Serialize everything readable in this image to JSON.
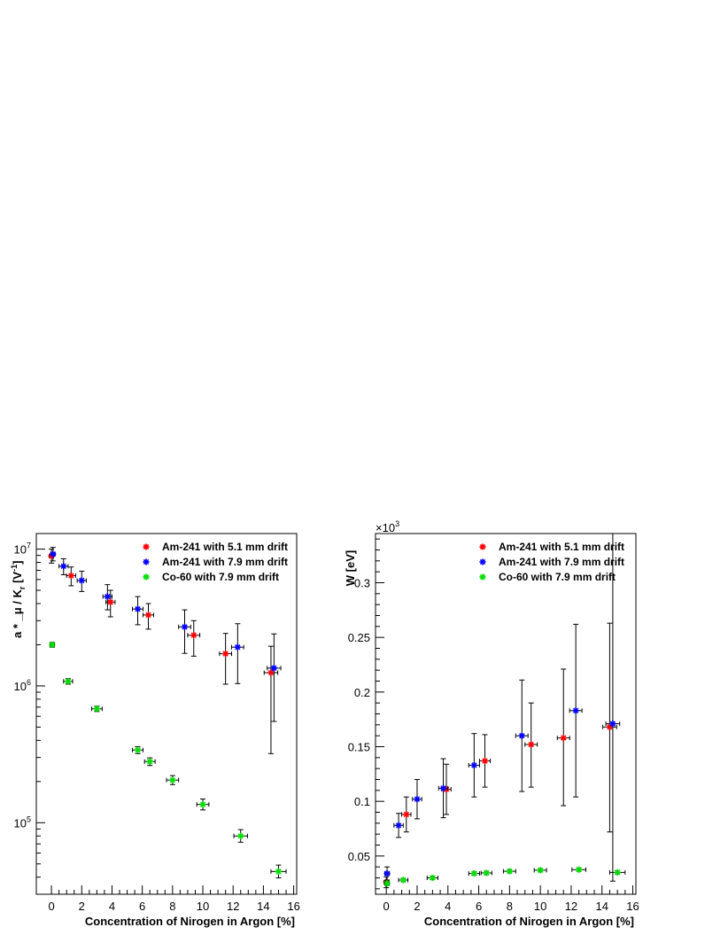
{
  "chart_data": [
    {
      "type": "scatter",
      "title": "",
      "xlabel": "Concentration of Nirogen in Argon [%]",
      "ylabel": "a * _μ / K_r [V^-1]",
      "ylabel_parts": [
        "a * ",
        "_μ / K",
        "r",
        " [V",
        "-1",
        "]"
      ],
      "xlim": [
        -1,
        16.2
      ],
      "ylim": [
        30000,
        13000000
      ],
      "yscale": "log",
      "x_ticks": [
        "0",
        "2",
        "4",
        "6",
        "8",
        "10",
        "12",
        "14",
        "16"
      ],
      "y_ticks": [
        {
          "base": "10",
          "exp": "5",
          "value": 100000
        },
        {
          "base": "10",
          "exp": "6",
          "value": 1000000
        },
        {
          "base": "10",
          "exp": "7",
          "value": 10000000
        }
      ],
      "legend_position": "top-right",
      "grid": false,
      "series": [
        {
          "name": "Am-241 with 5.1 mm drift",
          "color": "#ff0000",
          "points": [
            {
              "x": 0.0,
              "y": 8900000,
              "xerr": 0.15,
              "ylo": 7900000,
              "yhi": 10000000
            },
            {
              "x": 1.3,
              "y": 6400000,
              "xerr": 0.3,
              "ylo": 5400000,
              "yhi": 7400000
            },
            {
              "x": 3.9,
              "y": 4100000,
              "xerr": 0.3,
              "ylo": 3200000,
              "yhi": 5000000
            },
            {
              "x": 6.4,
              "y": 3300000,
              "xerr": 0.35,
              "ylo": 2600000,
              "yhi": 4000000
            },
            {
              "x": 9.4,
              "y": 2350000,
              "xerr": 0.4,
              "ylo": 1650000,
              "yhi": 3000000
            },
            {
              "x": 11.5,
              "y": 1720000,
              "xerr": 0.4,
              "ylo": 1030000,
              "yhi": 2420000
            },
            {
              "x": 14.5,
              "y": 1250000,
              "xerr": 0.45,
              "ylo": 320000,
              "yhi": 1950000
            }
          ]
        },
        {
          "name": "Am-241 with 7.9 mm drift",
          "color": "#0000ff",
          "points": [
            {
              "x": 0.1,
              "y": 9200000,
              "xerr": 0.15,
              "ylo": 8200000,
              "yhi": 10300000
            },
            {
              "x": 0.8,
              "y": 7500000,
              "xerr": 0.3,
              "ylo": 6500000,
              "yhi": 8500000
            },
            {
              "x": 2.0,
              "y": 5900000,
              "xerr": 0.3,
              "ylo": 4900000,
              "yhi": 6900000
            },
            {
              "x": 3.7,
              "y": 4500000,
              "xerr": 0.3,
              "ylo": 3600000,
              "yhi": 5500000
            },
            {
              "x": 5.7,
              "y": 3650000,
              "xerr": 0.35,
              "ylo": 2800000,
              "yhi": 4500000
            },
            {
              "x": 8.8,
              "y": 2700000,
              "xerr": 0.4,
              "ylo": 1730000,
              "yhi": 3600000
            },
            {
              "x": 12.3,
              "y": 1920000,
              "xerr": 0.4,
              "ylo": 1040000,
              "yhi": 2850000
            },
            {
              "x": 14.7,
              "y": 1350000,
              "xerr": 0.45,
              "ylo": 550000,
              "yhi": 2400000
            }
          ]
        },
        {
          "name": "Co-60 with 7.9 mm drift",
          "color": "#00dd00",
          "points": [
            {
              "x": 0.05,
              "y": 2000000,
              "xerr": 0.15,
              "ylo": 1920000,
              "yhi": 2080000
            },
            {
              "x": 1.1,
              "y": 1080000,
              "xerr": 0.3,
              "ylo": 1030000,
              "yhi": 1130000
            },
            {
              "x": 3.0,
              "y": 680000,
              "xerr": 0.35,
              "ylo": 650000,
              "yhi": 710000
            },
            {
              "x": 5.7,
              "y": 340000,
              "xerr": 0.35,
              "ylo": 320000,
              "yhi": 360000
            },
            {
              "x": 6.5,
              "y": 280000,
              "xerr": 0.35,
              "ylo": 262000,
              "yhi": 298000
            },
            {
              "x": 8.0,
              "y": 205000,
              "xerr": 0.4,
              "ylo": 190000,
              "yhi": 221000
            },
            {
              "x": 10.0,
              "y": 136000,
              "xerr": 0.4,
              "ylo": 124000,
              "yhi": 149000
            },
            {
              "x": 12.5,
              "y": 80000,
              "xerr": 0.45,
              "ylo": 72000,
              "yhi": 89000
            },
            {
              "x": 15.0,
              "y": 44000,
              "xerr": 0.5,
              "ylo": 39500,
              "yhi": 49000
            }
          ]
        }
      ]
    },
    {
      "type": "scatter",
      "title": "",
      "xlabel": "Concentration of Nirogen in Argon [%]",
      "ylabel": "W [eV]",
      "y_multiplier": {
        "base": "×10",
        "exp": "3"
      },
      "xlim": [
        -0.7,
        16.2
      ],
      "ylim": [
        0.015,
        0.345
      ],
      "yscale": "linear",
      "x_ticks": [
        "0",
        "2",
        "4",
        "6",
        "8",
        "10",
        "12",
        "14",
        "16"
      ],
      "y_ticks": [
        "0.05",
        "0.1",
        "0.15",
        "0.2",
        "0.25",
        "0.3"
      ],
      "legend_position": "top-right",
      "grid": false,
      "series": [
        {
          "name": "Am-241 with 5.1 mm drift",
          "color": "#ff0000",
          "points": [
            {
              "x": 0.0,
              "y": 0.026,
              "xerr": 0.15,
              "ylo": 0.021,
              "yhi": 0.031
            },
            {
              "x": 1.3,
              "y": 0.088,
              "xerr": 0.3,
              "ylo": 0.072,
              "yhi": 0.104
            },
            {
              "x": 3.9,
              "y": 0.111,
              "xerr": 0.3,
              "ylo": 0.088,
              "yhi": 0.134
            },
            {
              "x": 6.4,
              "y": 0.137,
              "xerr": 0.35,
              "ylo": 0.113,
              "yhi": 0.161
            },
            {
              "x": 9.4,
              "y": 0.152,
              "xerr": 0.4,
              "ylo": 0.113,
              "yhi": 0.19
            },
            {
              "x": 11.5,
              "y": 0.158,
              "xerr": 0.4,
              "ylo": 0.096,
              "yhi": 0.221
            },
            {
              "x": 14.5,
              "y": 0.168,
              "xerr": 0.45,
              "ylo": 0.072,
              "yhi": 0.263
            }
          ]
        },
        {
          "name": "Am-241 with 7.9 mm drift",
          "color": "#0000ff",
          "points": [
            {
              "x": 0.05,
              "y": 0.034,
              "xerr": 0.15,
              "ylo": 0.028,
              "yhi": 0.04
            },
            {
              "x": 0.8,
              "y": 0.078,
              "xerr": 0.3,
              "ylo": 0.067,
              "yhi": 0.089
            },
            {
              "x": 2.0,
              "y": 0.102,
              "xerr": 0.3,
              "ylo": 0.084,
              "yhi": 0.12
            },
            {
              "x": 3.7,
              "y": 0.112,
              "xerr": 0.3,
              "ylo": 0.085,
              "yhi": 0.139
            },
            {
              "x": 5.7,
              "y": 0.133,
              "xerr": 0.35,
              "ylo": 0.104,
              "yhi": 0.162
            },
            {
              "x": 8.8,
              "y": 0.16,
              "xerr": 0.4,
              "ylo": 0.109,
              "yhi": 0.211
            },
            {
              "x": 12.3,
              "y": 0.183,
              "xerr": 0.4,
              "ylo": 0.104,
              "yhi": 0.262
            },
            {
              "x": 14.7,
              "y": 0.171,
              "xerr": 0.45,
              "ylo": 0.027,
              "yhi": 0.345
            }
          ]
        },
        {
          "name": "Co-60 with 7.9 mm drift",
          "color": "#00dd00",
          "points": [
            {
              "x": 0.05,
              "y": 0.025,
              "xerr": 0.15,
              "ylo": 0.023,
              "yhi": 0.027
            },
            {
              "x": 1.1,
              "y": 0.028,
              "xerr": 0.3,
              "ylo": 0.0265,
              "yhi": 0.0295
            },
            {
              "x": 3.0,
              "y": 0.03,
              "xerr": 0.35,
              "ylo": 0.0285,
              "yhi": 0.0315
            },
            {
              "x": 5.7,
              "y": 0.034,
              "xerr": 0.35,
              "ylo": 0.0325,
              "yhi": 0.0355
            },
            {
              "x": 6.5,
              "y": 0.0345,
              "xerr": 0.35,
              "ylo": 0.033,
              "yhi": 0.036
            },
            {
              "x": 8.0,
              "y": 0.036,
              "xerr": 0.4,
              "ylo": 0.0345,
              "yhi": 0.0375
            },
            {
              "x": 10.0,
              "y": 0.037,
              "xerr": 0.4,
              "ylo": 0.0355,
              "yhi": 0.0385
            },
            {
              "x": 12.5,
              "y": 0.0375,
              "xerr": 0.45,
              "ylo": 0.036,
              "yhi": 0.039
            },
            {
              "x": 15.0,
              "y": 0.035,
              "xerr": 0.5,
              "ylo": 0.0335,
              "yhi": 0.0365
            }
          ]
        }
      ]
    }
  ]
}
